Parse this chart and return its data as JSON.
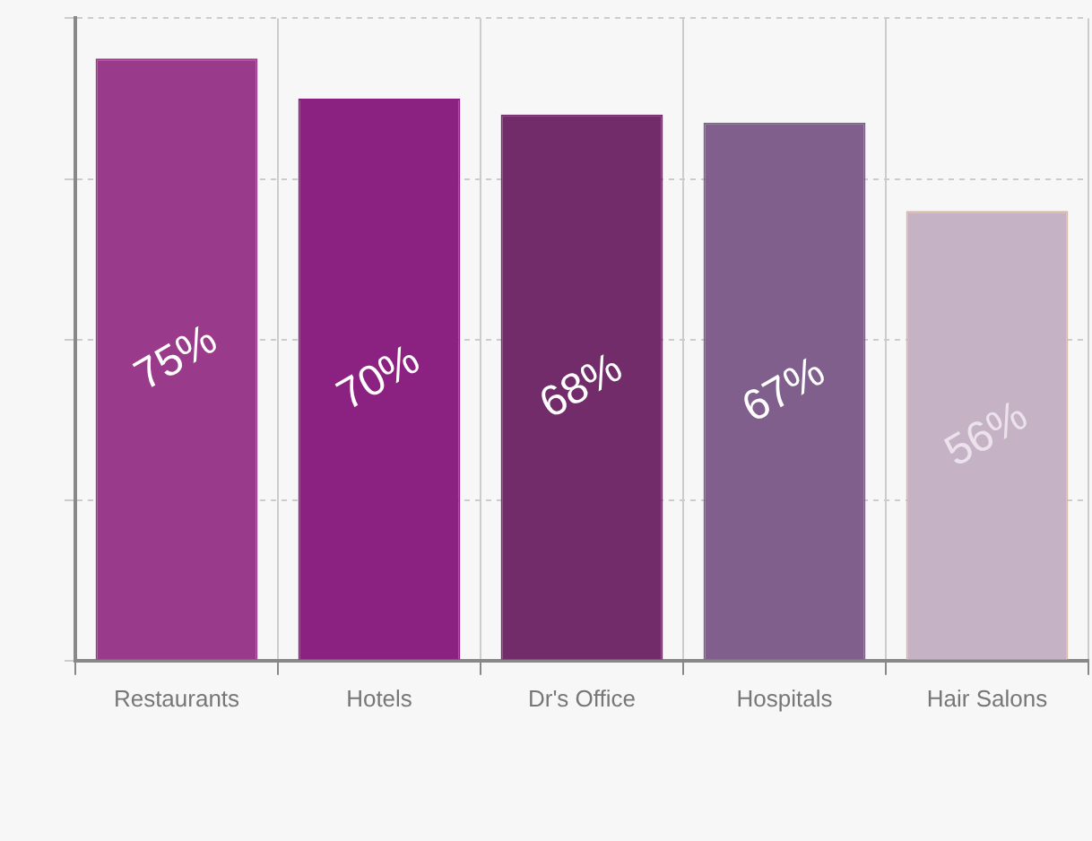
{
  "chart_data": {
    "type": "bar",
    "categories": [
      "Restaurants",
      "Hotels",
      "Dr's Office",
      "Hospitals",
      "Hair Salons"
    ],
    "values": [
      75,
      70,
      68,
      67,
      56
    ],
    "colors": [
      "#993a8b",
      "#8b2180",
      "#722c6a",
      "#805f8c",
      "#c5b3c5"
    ],
    "value_labels": [
      "75%",
      "70%",
      "68%",
      "67%",
      "56%"
    ],
    "ylim": [
      0,
      80
    ],
    "yticks": [
      {
        "value": 0,
        "label": null
      },
      {
        "value": 20,
        "label": null
      },
      {
        "value": 40,
        "label": null
      },
      {
        "value": 60,
        "label": null
      },
      {
        "value": 80,
        "label": null
      }
    ],
    "tick_labels": "x",
    "grid": true,
    "legend": false
  }
}
